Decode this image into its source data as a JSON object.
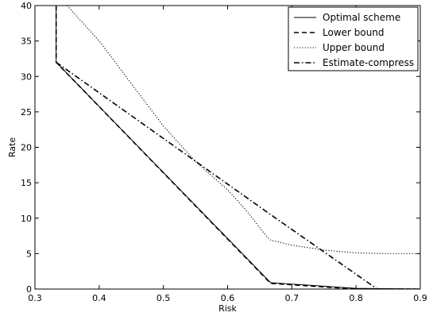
{
  "chart_data": {
    "type": "line",
    "title": "",
    "xlabel": "Risk",
    "ylabel": "Rate",
    "xlim": [
      0.3,
      0.9
    ],
    "ylim": [
      0,
      40
    ],
    "xticks": [
      0.3,
      0.4,
      0.5,
      0.6,
      0.7,
      0.8,
      0.9
    ],
    "xtick_labels": [
      "0.3",
      "0.4",
      "0.5",
      "0.6",
      "0.7",
      "0.8",
      "0.9"
    ],
    "yticks": [
      0,
      5,
      10,
      15,
      20,
      25,
      30,
      35,
      40
    ],
    "ytick_labels": [
      "0",
      "5",
      "10",
      "15",
      "20",
      "25",
      "30",
      "35",
      "40"
    ],
    "grid": false,
    "legend_position": "top-right",
    "series": [
      {
        "name": "Optimal scheme",
        "style": "solid",
        "color": "#000000",
        "x": [
          0.333,
          0.333,
          0.667,
          0.8,
          0.9
        ],
        "y": [
          40,
          32,
          0.9,
          0.1,
          0
        ]
      },
      {
        "name": "Lower bound",
        "style": "dashed",
        "color": "#000000",
        "x": [
          0.333,
          0.333,
          0.667,
          0.8,
          0.9
        ],
        "y": [
          40,
          32,
          0.8,
          0,
          0
        ]
      },
      {
        "name": "Upper bound",
        "style": "dotted",
        "color": "#000000",
        "x": [
          0.35,
          0.4,
          0.45,
          0.5,
          0.55,
          0.6,
          0.63,
          0.66,
          0.667,
          0.7,
          0.75,
          0.8,
          0.85,
          0.9
        ],
        "y": [
          40,
          35,
          29,
          23,
          18,
          14,
          11,
          7.5,
          6.9,
          6.2,
          5.5,
          5.1,
          5.0,
          5.0
        ]
      },
      {
        "name": "Estimate-compress",
        "style": "dashdot",
        "color": "#000000",
        "x": [
          0.333,
          0.667,
          0.833,
          0.9
        ],
        "y": [
          32,
          10.5,
          0,
          0
        ]
      }
    ]
  }
}
